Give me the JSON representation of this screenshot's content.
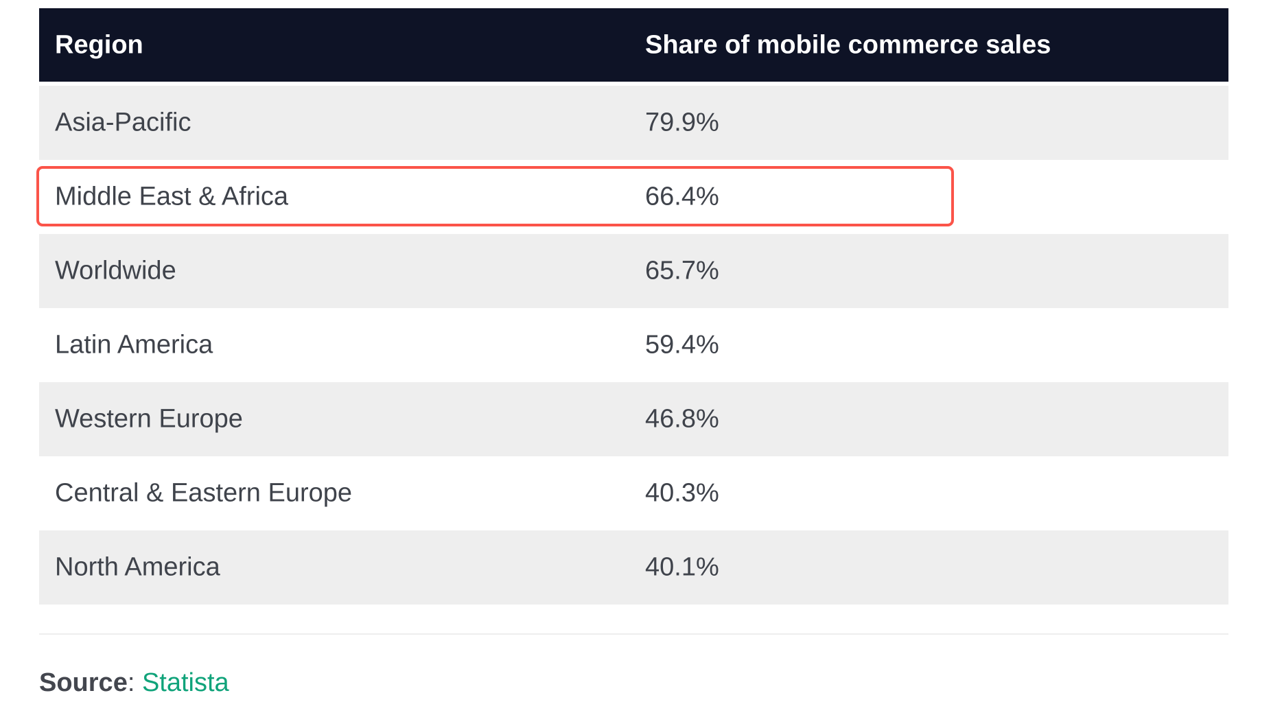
{
  "table": {
    "headers": [
      "Region",
      "Share of mobile commerce sales"
    ],
    "rows": [
      {
        "region": "Asia-Pacific",
        "share": "79.9%"
      },
      {
        "region": "Middle East & Africa",
        "share": "66.4%"
      },
      {
        "region": "Worldwide",
        "share": "65.7%"
      },
      {
        "region": "Latin America",
        "share": "59.4%"
      },
      {
        "region": "Western Europe",
        "share": "46.8%"
      },
      {
        "region": "Central & Eastern Europe",
        "share": "40.3%"
      },
      {
        "region": "North America",
        "share": "40.1%"
      }
    ],
    "highlighted_row": "Middle East & Africa",
    "colors": {
      "header_bg": "#0e1326",
      "stripe": "#eeeeee",
      "highlight": "#fb5449"
    }
  },
  "source": {
    "label": "Source",
    "separator": ":",
    "link_text": "Statista",
    "link_color": "#10a37a"
  }
}
